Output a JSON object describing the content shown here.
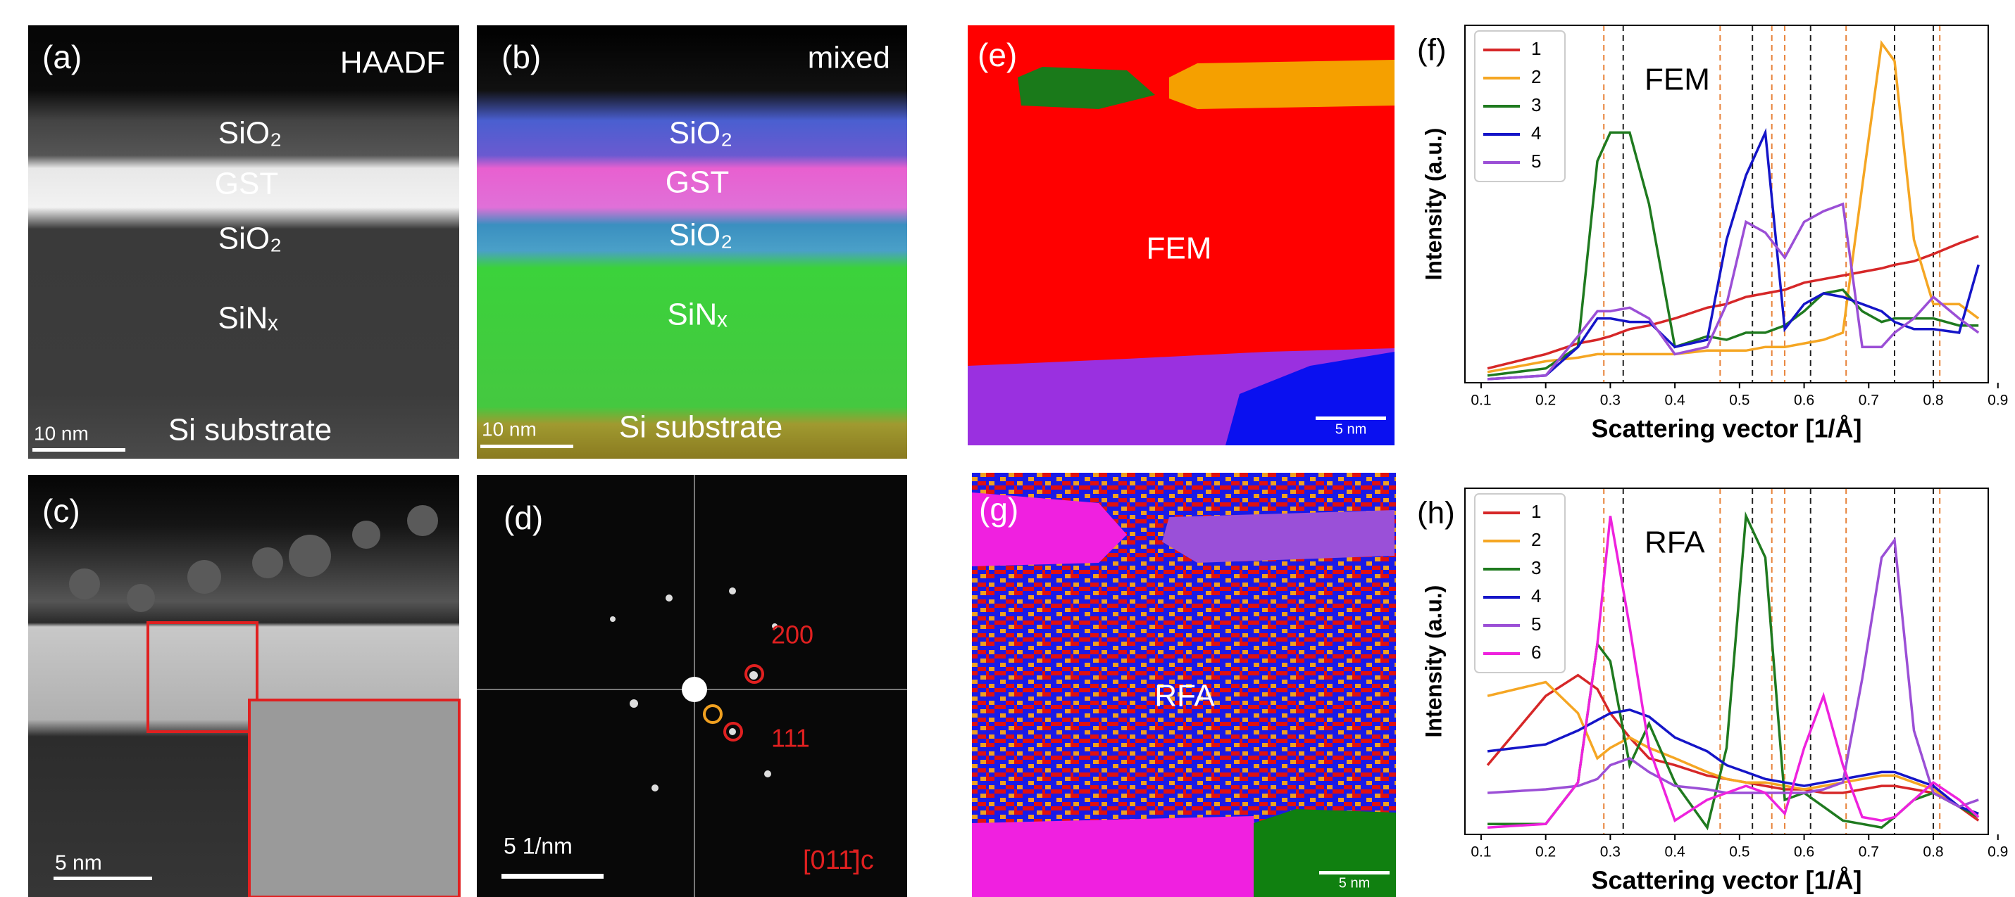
{
  "panels": {
    "a": {
      "label": "(a)",
      "title": "HAADF",
      "layers": [
        "SiO₂",
        "GST",
        "SiO₂",
        "SiNₓ"
      ],
      "substrate": "Si substrate",
      "scale_bar": "10 nm"
    },
    "b": {
      "label": "(b)",
      "title": "mixed",
      "layers": [
        "SiO₂",
        "GST",
        "SiO₂",
        "SiNₓ"
      ],
      "substrate": "Si substrate",
      "scale_bar": "10 nm"
    },
    "c": {
      "label": "(c)",
      "scale_bar": "5 nm"
    },
    "d": {
      "label": "(d)",
      "spot_200": "200",
      "spot_111": "111",
      "zone_axis": "[011̄]c",
      "scale_bar": "5 1/nm"
    },
    "e": {
      "label": "(e)",
      "method": "FEM",
      "scale_bar": "5 nm"
    },
    "g": {
      "label": "(g)",
      "method": "RFA",
      "scale_bar": "5 nm"
    }
  },
  "chart_data": [
    {
      "type": "line",
      "panel_label": "(f)",
      "annotation": "FEM",
      "xlabel": "Scattering vector [1/Å]",
      "ylabel": "Intensity (a.u.)",
      "xlim": [
        0.075,
        0.885
      ],
      "ylim": [
        0,
        1
      ],
      "xticks": [
        0.1,
        0.2,
        0.3,
        0.4,
        0.5,
        0.6,
        0.7,
        0.8,
        0.9
      ],
      "legend": "upper-left",
      "reference_lines": [
        {
          "x": 0.29,
          "color": "#e8833a"
        },
        {
          "x": 0.32,
          "color": "#222222"
        },
        {
          "x": 0.47,
          "color": "#e8833a"
        },
        {
          "x": 0.52,
          "color": "#222222"
        },
        {
          "x": 0.55,
          "color": "#e8833a"
        },
        {
          "x": 0.57,
          "color": "#e8833a"
        },
        {
          "x": 0.61,
          "color": "#222222"
        },
        {
          "x": 0.665,
          "color": "#e8833a"
        },
        {
          "x": 0.74,
          "color": "#222222"
        },
        {
          "x": 0.8,
          "color": "#222222"
        },
        {
          "x": 0.81,
          "color": "#e8833a"
        }
      ],
      "x": [
        0.11,
        0.2,
        0.25,
        0.28,
        0.3,
        0.33,
        0.36,
        0.4,
        0.45,
        0.48,
        0.51,
        0.54,
        0.57,
        0.6,
        0.63,
        0.66,
        0.69,
        0.72,
        0.74,
        0.77,
        0.8,
        0.84,
        0.87
      ],
      "series": [
        {
          "name": "1",
          "color": "#d62728",
          "values": [
            0.04,
            0.08,
            0.11,
            0.12,
            0.13,
            0.15,
            0.16,
            0.18,
            0.21,
            0.22,
            0.24,
            0.25,
            0.26,
            0.28,
            0.29,
            0.3,
            0.31,
            0.32,
            0.33,
            0.34,
            0.36,
            0.39,
            0.41
          ]
        },
        {
          "name": "2",
          "color": "#f5a623",
          "values": [
            0.03,
            0.06,
            0.07,
            0.08,
            0.08,
            0.08,
            0.08,
            0.08,
            0.09,
            0.09,
            0.09,
            0.1,
            0.1,
            0.11,
            0.12,
            0.14,
            0.55,
            0.95,
            0.9,
            0.4,
            0.22,
            0.22,
            0.18
          ]
        },
        {
          "name": "3",
          "color": "#1f7a1f",
          "values": [
            0.02,
            0.04,
            0.1,
            0.62,
            0.7,
            0.7,
            0.5,
            0.1,
            0.13,
            0.12,
            0.14,
            0.14,
            0.16,
            0.2,
            0.25,
            0.26,
            0.2,
            0.17,
            0.18,
            0.18,
            0.18,
            0.16,
            0.16
          ]
        },
        {
          "name": "4",
          "color": "#1515c8",
          "values": [
            0.01,
            0.02,
            0.1,
            0.18,
            0.18,
            0.17,
            0.17,
            0.1,
            0.12,
            0.4,
            0.58,
            0.7,
            0.15,
            0.22,
            0.25,
            0.24,
            0.22,
            0.2,
            0.17,
            0.15,
            0.15,
            0.14,
            0.33
          ]
        },
        {
          "name": "5",
          "color": "#9b4fd6",
          "values": [
            0.01,
            0.02,
            0.13,
            0.2,
            0.2,
            0.21,
            0.18,
            0.08,
            0.1,
            0.22,
            0.45,
            0.42,
            0.35,
            0.45,
            0.48,
            0.5,
            0.1,
            0.1,
            0.14,
            0.18,
            0.24,
            0.18,
            0.14
          ]
        }
      ]
    },
    {
      "type": "line",
      "panel_label": "(h)",
      "annotation": "RFA",
      "xlabel": "Scattering vector [1/Å]",
      "ylabel": "Intensity (a.u.)",
      "xlim": [
        0.075,
        0.885
      ],
      "ylim": [
        0,
        1
      ],
      "xticks": [
        0.1,
        0.2,
        0.3,
        0.4,
        0.5,
        0.6,
        0.7,
        0.8,
        0.9
      ],
      "legend": "upper-left",
      "reference_lines": [
        {
          "x": 0.29,
          "color": "#e8833a"
        },
        {
          "x": 0.32,
          "color": "#222222"
        },
        {
          "x": 0.47,
          "color": "#e8833a"
        },
        {
          "x": 0.52,
          "color": "#222222"
        },
        {
          "x": 0.55,
          "color": "#e8833a"
        },
        {
          "x": 0.57,
          "color": "#e8833a"
        },
        {
          "x": 0.61,
          "color": "#222222"
        },
        {
          "x": 0.665,
          "color": "#e8833a"
        },
        {
          "x": 0.74,
          "color": "#222222"
        },
        {
          "x": 0.8,
          "color": "#222222"
        },
        {
          "x": 0.81,
          "color": "#e8833a"
        }
      ],
      "x": [
        0.11,
        0.2,
        0.25,
        0.28,
        0.3,
        0.33,
        0.36,
        0.4,
        0.45,
        0.48,
        0.51,
        0.54,
        0.57,
        0.6,
        0.63,
        0.66,
        0.69,
        0.72,
        0.74,
        0.77,
        0.8,
        0.84,
        0.87
      ],
      "series": [
        {
          "name": "1",
          "color": "#d62728",
          "values": [
            0.2,
            0.4,
            0.46,
            0.42,
            0.35,
            0.28,
            0.22,
            0.2,
            0.17,
            0.16,
            0.15,
            0.14,
            0.13,
            0.13,
            0.12,
            0.12,
            0.13,
            0.14,
            0.14,
            0.13,
            0.12,
            0.08,
            0.04
          ]
        },
        {
          "name": "2",
          "color": "#f5a623",
          "values": [
            0.4,
            0.44,
            0.35,
            0.22,
            0.25,
            0.28,
            0.25,
            0.22,
            0.18,
            0.16,
            0.15,
            0.15,
            0.14,
            0.13,
            0.14,
            0.15,
            0.16,
            0.17,
            0.17,
            0.15,
            0.13,
            0.08,
            0.06
          ]
        },
        {
          "name": "3",
          "color": "#1f7a1f",
          "values": [
            0.03,
            0.03,
            0.15,
            0.55,
            0.5,
            0.2,
            0.32,
            0.15,
            0.02,
            0.25,
            0.92,
            0.8,
            0.1,
            0.12,
            0.08,
            0.04,
            0.03,
            0.02,
            0.05,
            0.1,
            0.12,
            0.08,
            0.05
          ]
        },
        {
          "name": "4",
          "color": "#1515c8",
          "values": [
            0.24,
            0.26,
            0.3,
            0.33,
            0.35,
            0.36,
            0.34,
            0.28,
            0.24,
            0.2,
            0.18,
            0.16,
            0.15,
            0.14,
            0.15,
            0.16,
            0.17,
            0.18,
            0.18,
            0.16,
            0.14,
            0.08,
            0.06
          ]
        },
        {
          "name": "5",
          "color": "#9b4fd6",
          "values": [
            0.12,
            0.13,
            0.14,
            0.16,
            0.2,
            0.22,
            0.18,
            0.14,
            0.13,
            0.12,
            0.12,
            0.12,
            0.12,
            0.12,
            0.13,
            0.15,
            0.45,
            0.8,
            0.85,
            0.3,
            0.12,
            0.08,
            0.1
          ]
        },
        {
          "name": "6",
          "color": "#ee22dd",
          "values": [
            0.02,
            0.03,
            0.15,
            0.55,
            0.92,
            0.6,
            0.25,
            0.04,
            0.1,
            0.12,
            0.14,
            0.12,
            0.06,
            0.25,
            0.4,
            0.2,
            0.05,
            0.04,
            0.05,
            0.1,
            0.15,
            0.1,
            0.05
          ]
        }
      ]
    }
  ]
}
